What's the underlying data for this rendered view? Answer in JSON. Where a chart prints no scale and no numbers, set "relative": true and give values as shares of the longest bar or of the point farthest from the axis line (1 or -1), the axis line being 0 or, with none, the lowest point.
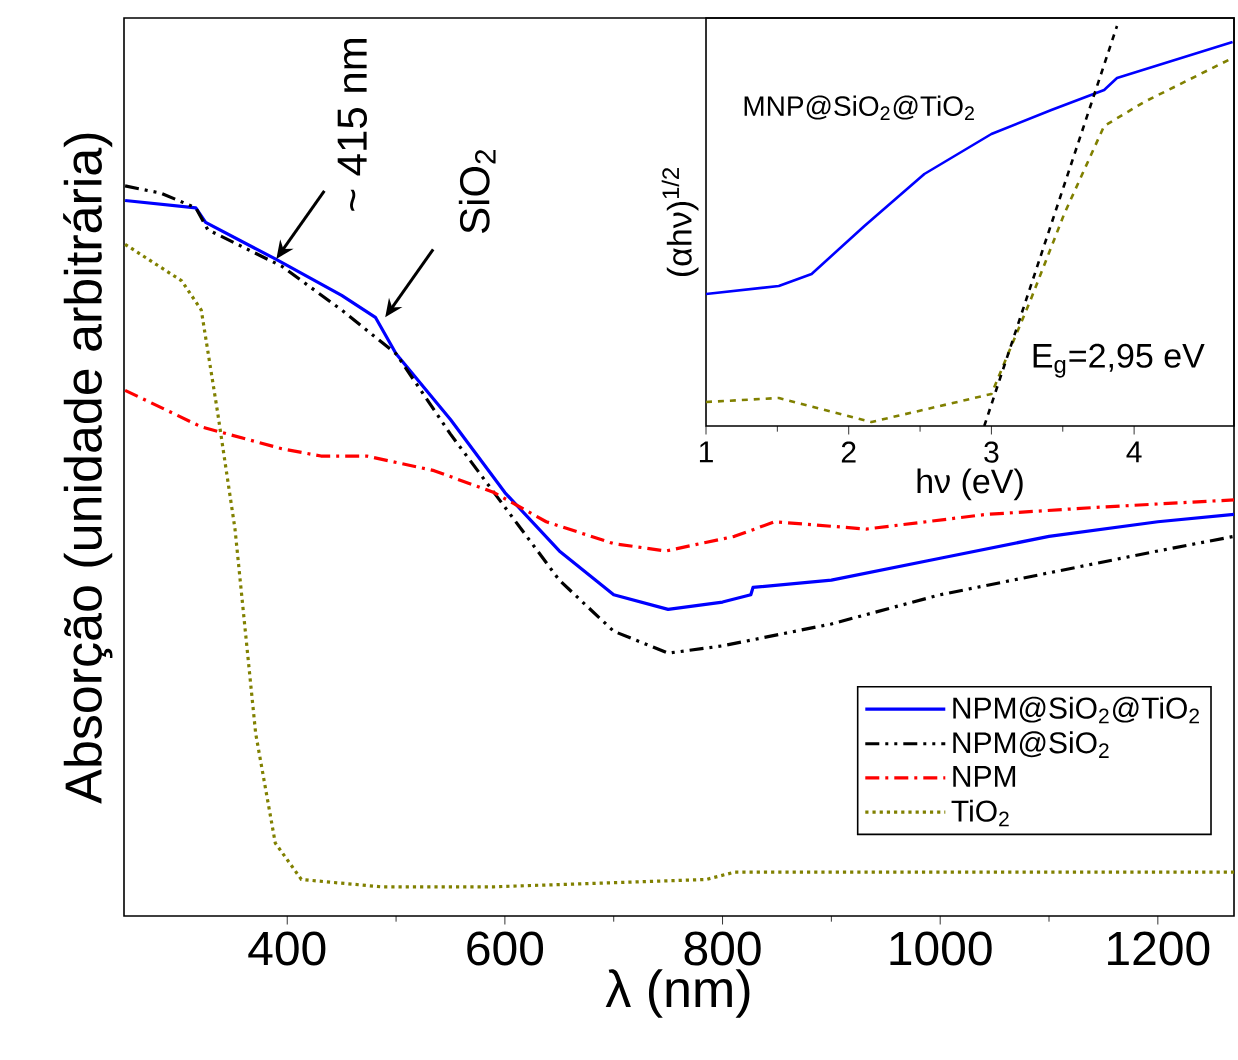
{
  "chart_data": [
    {
      "type": "line",
      "xlabel": "λ (nm)",
      "ylabel": "Absorção (unidade arbitrária)",
      "relative": true,
      "xlim": [
        250,
        1270
      ],
      "xticks": [
        400,
        600,
        800,
        1000,
        1200
      ],
      "legend": "bottom right",
      "grid": false,
      "marker": "none",
      "annotations": [
        {
          "text": "~ 415 nm",
          "x": 390,
          "y": 0.9
        },
        {
          "text": "SiO$_{2}$",
          "x": 490,
          "y": 0.82
        }
      ],
      "series": [
        {
          "name": "NPM@SiO$_{2}$@TiO$_{2}$",
          "color": "#0000ff",
          "line_style": "solid",
          "x": [
            251,
            316,
            325,
            389,
            450,
            481,
            500,
            550,
            600,
            650,
            700,
            750,
            800,
            826,
            828,
            900,
            1000,
            1100,
            1200,
            1270
          ],
          "values": [
            0.98,
            0.97,
            0.95,
            0.9,
            0.85,
            0.82,
            0.77,
            0.68,
            0.58,
            0.5,
            0.44,
            0.42,
            0.43,
            0.44,
            0.45,
            0.46,
            0.49,
            0.52,
            0.54,
            0.55
          ]
        },
        {
          "name": "NPM@SiO$_{2}$",
          "color": "#000000",
          "line_style": "dashdotdotted",
          "x": [
            251,
            284,
            316,
            327,
            395,
            450,
            500,
            550,
            600,
            650,
            700,
            750,
            800,
            900,
            1000,
            1100,
            1200,
            1270
          ],
          "values": [
            1.0,
            0.99,
            0.97,
            0.94,
            0.89,
            0.83,
            0.77,
            0.66,
            0.56,
            0.46,
            0.39,
            0.36,
            0.37,
            0.4,
            0.44,
            0.47,
            0.5,
            0.52
          ]
        },
        {
          "name": "NPM",
          "color": "#ff0000",
          "line_style": "dashdotted",
          "x": [
            251,
            321,
            395,
            431,
            473,
            535,
            590,
            638,
            700,
            748,
            811,
            848,
            932,
            1042,
            1147,
            1270
          ],
          "values": [
            0.72,
            0.67,
            0.64,
            0.63,
            0.63,
            0.61,
            0.58,
            0.54,
            0.51,
            0.5,
            0.52,
            0.54,
            0.53,
            0.55,
            0.56,
            0.57
          ]
        },
        {
          "name": "TiO$_{2}$",
          "color": "#808000",
          "line_style": "dotted",
          "x": [
            251,
            303,
            321,
            336,
            352,
            371,
            389,
            413,
            486,
            590,
            785,
            811,
            994,
            1270
          ],
          "values": [
            0.92,
            0.87,
            0.83,
            0.69,
            0.53,
            0.25,
            0.1,
            0.05,
            0.04,
            0.04,
            0.05,
            0.06,
            0.06,
            0.06
          ]
        }
      ]
    },
    {
      "type": "line",
      "xlabel": "hν (eV)",
      "ylabel": "(αhν)$^{1/2}$",
      "relative": true,
      "xlim": [
        1,
        4.7
      ],
      "xticks": [
        1,
        2,
        3,
        4
      ],
      "legend": false,
      "grid": false,
      "marker": "none",
      "annotations": [
        "MNP@SiO$_{2}$@TiO$_{2}$",
        "E$_{g}$=2,95 eV"
      ],
      "series": [
        {
          "color": "#0000ff",
          "line_style": "solid",
          "x": [
            1.0,
            1.51,
            1.74,
            2.11,
            2.53,
            3.0,
            3.42,
            3.79,
            3.88,
            4.69
          ],
          "values": [
            0.33,
            0.35,
            0.38,
            0.5,
            0.63,
            0.73,
            0.79,
            0.84,
            0.87,
            0.96
          ]
        },
        {
          "color": "#808000",
          "line_style": "dashed",
          "x": [
            1.0,
            1.51,
            2.16,
            3.0,
            3.28,
            3.51,
            3.79,
            4.07,
            4.69
          ],
          "values": [
            0.06,
            0.07,
            0.01,
            0.08,
            0.32,
            0.53,
            0.75,
            0.81,
            0.92
          ]
        },
        {
          "color": "#000000",
          "line_style": "dashed",
          "x": [
            2.95,
            3.88
          ],
          "values": [
            0,
            1
          ]
        }
      ]
    }
  ]
}
